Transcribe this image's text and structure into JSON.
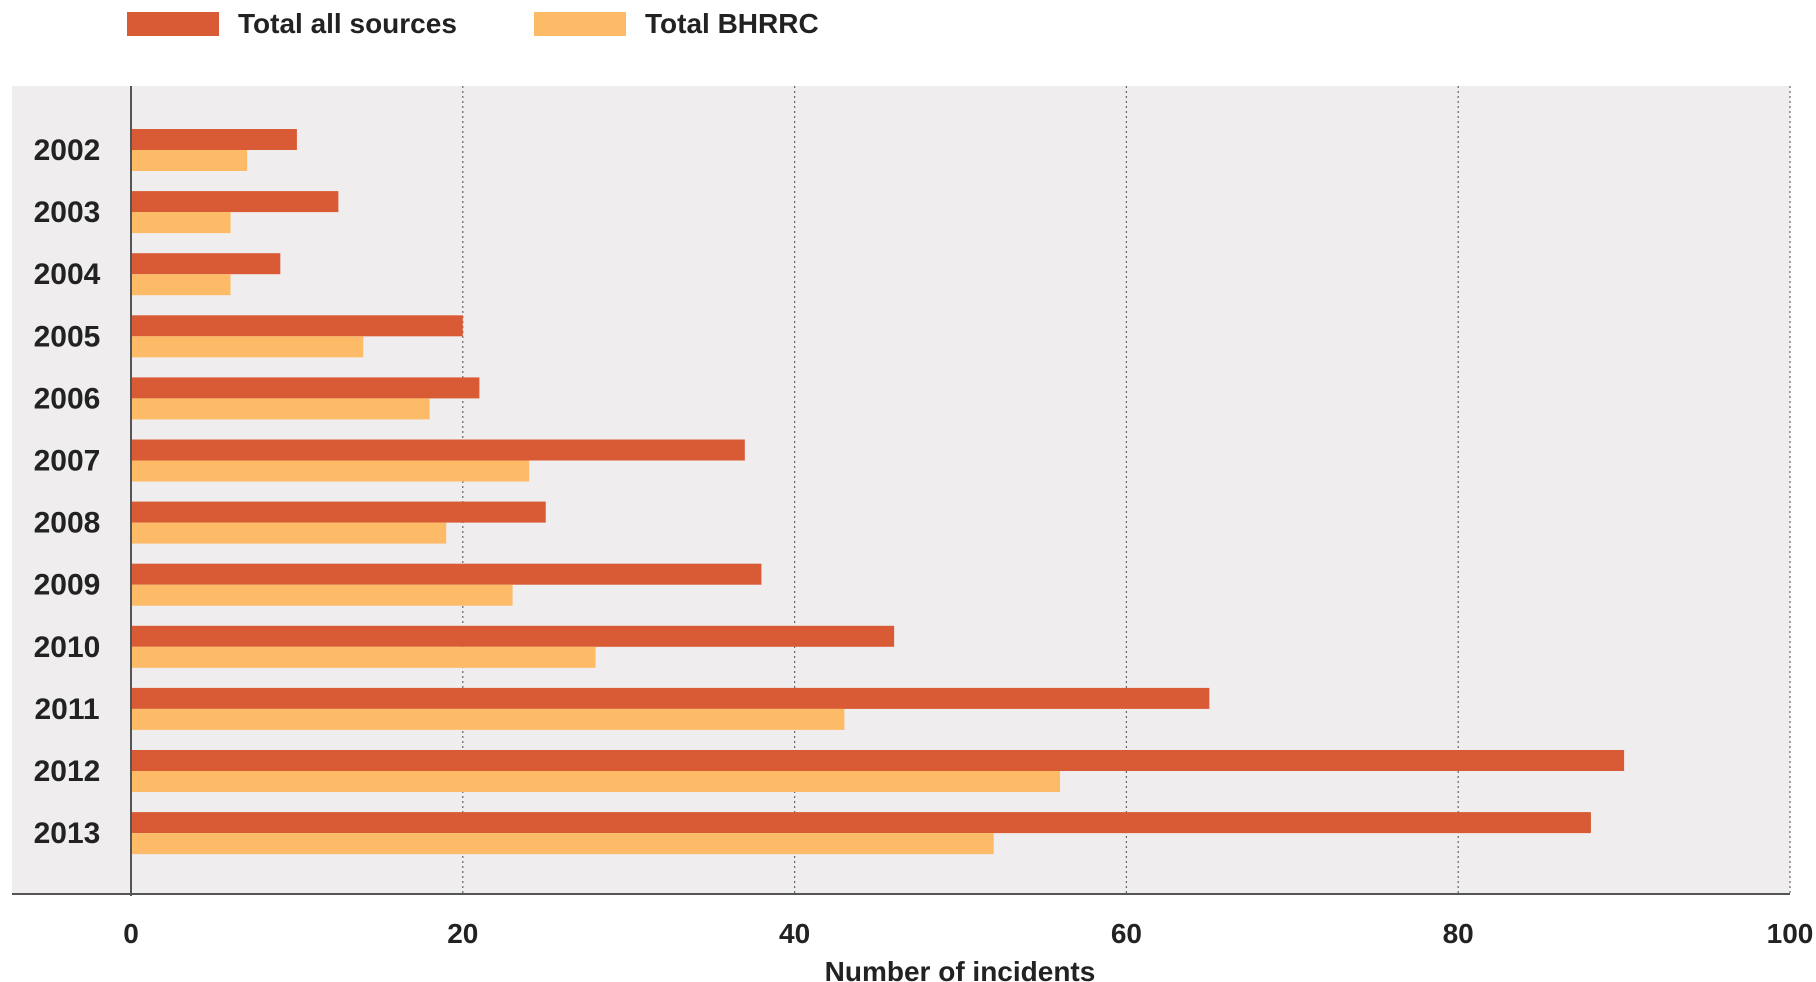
{
  "chart_data": {
    "type": "bar",
    "orientation": "horizontal",
    "title": "",
    "xlabel": "Number of incidents",
    "ylabel": "",
    "xlim": [
      0,
      100
    ],
    "xticks": [
      0,
      20,
      40,
      60,
      80,
      100
    ],
    "grid": "vertical dotted",
    "legend_position": "top-left",
    "categories": [
      "2002",
      "2003",
      "2004",
      "2005",
      "2006",
      "2007",
      "2008",
      "2009",
      "2010",
      "2011",
      "2012",
      "2013"
    ],
    "series": [
      {
        "name": "Total all sources",
        "color": "#d95b35",
        "values": [
          10,
          12.5,
          9,
          20,
          21,
          37,
          25,
          38,
          46,
          65,
          90,
          88
        ]
      },
      {
        "name": "Total BHRRC",
        "color": "#fdbb67",
        "values": [
          7,
          6,
          6,
          14,
          18,
          24,
          19,
          23,
          28,
          43,
          56,
          52
        ]
      }
    ],
    "colors": {
      "plot_background": "#efeded",
      "grid": "#666666",
      "axis": "#555555"
    }
  }
}
